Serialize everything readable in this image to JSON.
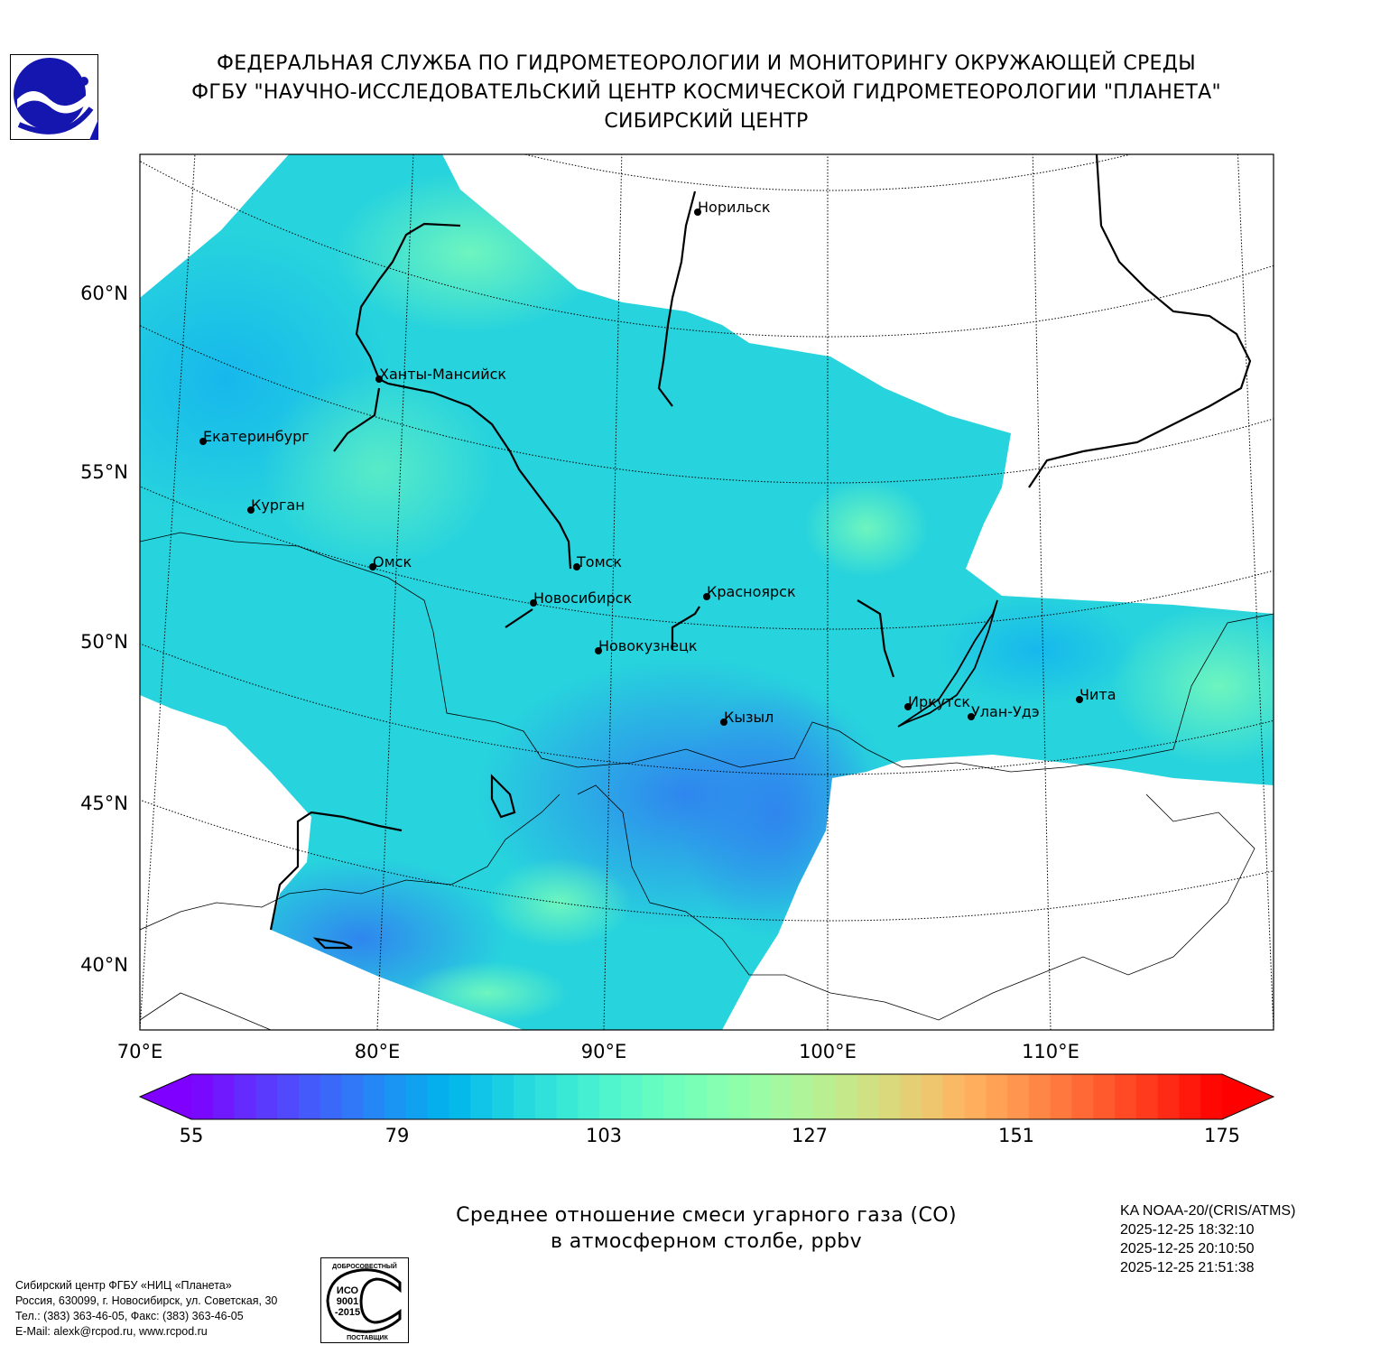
{
  "header": {
    "line1": "ФЕДЕРАЛЬНАЯ СЛУЖБА ПО ГИДРОМЕТЕОРОЛОГИИ И МОНИТОРИНГУ ОКРУЖАЮЩЕЙ СРЕДЫ",
    "line2": "ФГБУ \"НАУЧНО-ИССЛЕДОВАТЕЛЬСКИЙ ЦЕНТР КОСМИЧЕСКОЙ ГИДРОМЕТЕОРОЛОГИИ \"ПЛАНЕТА\"",
    "line3": "СИБИРСКИЙ ЦЕНТР"
  },
  "map": {
    "lat_labels": [
      "60°N",
      "55°N",
      "50°N",
      "45°N",
      "40°N"
    ],
    "lon_labels": [
      "70°E",
      "80°E",
      "90°E",
      "100°E",
      "110°E"
    ],
    "cities": [
      "Норильск",
      "Ханты-Мансийск",
      "Екатеринбург",
      "Курган",
      "Омск",
      "Томск",
      "Новосибирск",
      "Красноярск",
      "Новокузнецк",
      "Кызыл",
      "Иркутск",
      "Улан-Удэ",
      "Чита"
    ]
  },
  "colorbar": {
    "min": 55,
    "max": 175,
    "step": 2.5,
    "ticks": [
      "55",
      "79",
      "103",
      "127",
      "151",
      "175"
    ],
    "colormap": "rainbow",
    "low_color": "#7f00ff",
    "high_color": "#ff0000"
  },
  "title": {
    "line1": "Среднее отношение смеси угарного газа (CO)",
    "line2": "в атмосферном столбе, ppbv"
  },
  "satellite": {
    "instrument": "KA NOAA-20/(CRIS/ATMS)",
    "times": [
      "2025-12-25 18:32:10",
      "2025-12-25 20:10:50",
      "2025-12-25 21:51:38"
    ]
  },
  "footer": {
    "line1": "Сибирский центр ФГБУ «НИЦ «Планета»",
    "line2": "Россия, 630099, г. Новосибирск, ул. Советская, 30",
    "line3": "Тел.: (383) 363-46-05, Факс: (383) 363-46-05",
    "line4": "E-Mail: alexk@rcpod.ru, www.rcpod.ru"
  },
  "stamp": {
    "top": "ДОБРОСОВЕСТНЫЙ",
    "iso1": "ИСО",
    "iso2": "9001",
    "iso3": "-2015",
    "bottom": "ПОСТАВЩИК"
  }
}
